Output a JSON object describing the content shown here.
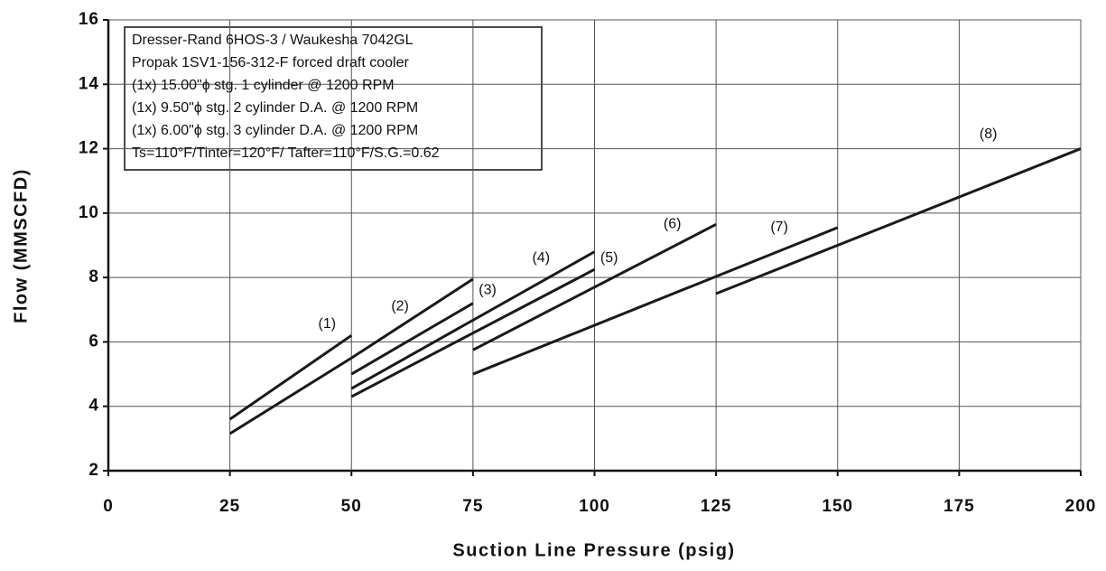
{
  "chart_data": {
    "type": "line",
    "xlabel": "Suction Line Pressure (psig)",
    "ylabel": "Flow (MMSCFD)",
    "xlim": [
      0,
      200
    ],
    "xticks": [
      0,
      25,
      50,
      75,
      100,
      125,
      150,
      175,
      200
    ],
    "ylim": [
      2,
      16
    ],
    "yticks": [
      2,
      4,
      6,
      8,
      10,
      12,
      14,
      16
    ],
    "grid": true,
    "color": "#1a1a1a",
    "series": [
      {
        "x": [
          25,
          50
        ],
        "values": [
          3.6,
          6.2
        ]
      },
      {
        "x": [
          25,
          50
        ],
        "values": [
          3.15,
          5.5
        ]
      },
      {
        "x": [
          50,
          75
        ],
        "values": [
          5.5,
          7.95
        ]
      },
      {
        "x": [
          50,
          75
        ],
        "values": [
          5.0,
          7.2
        ]
      },
      {
        "x": [
          50,
          100
        ],
        "values": [
          4.55,
          8.8
        ]
      },
      {
        "x": [
          50,
          100
        ],
        "values": [
          4.3,
          8.25
        ]
      },
      {
        "x": [
          75,
          125
        ],
        "values": [
          5.75,
          9.65
        ]
      },
      {
        "x": [
          75,
          150
        ],
        "values": [
          5.0,
          9.55
        ]
      },
      {
        "x": [
          125,
          200
        ],
        "values": [
          7.5,
          12.0
        ]
      }
    ],
    "annotations": [
      {
        "text": "(1)",
        "x": 45,
        "y": 6.55
      },
      {
        "text": "(2)",
        "x": 60,
        "y": 7.1
      },
      {
        "text": "(3)",
        "x": 78,
        "y": 7.6
      },
      {
        "text": "(4)",
        "x": 89,
        "y": 8.6
      },
      {
        "text": "(5)",
        "x": 103,
        "y": 8.6
      },
      {
        "text": "(6)",
        "x": 116,
        "y": 9.65
      },
      {
        "text": "(7)",
        "x": 138,
        "y": 9.55
      },
      {
        "text": "(8)",
        "x": 181,
        "y": 12.45
      }
    ],
    "info_box": [
      "Dresser-Rand 6HOS-3 / Waukesha 7042GL",
      "Propak 1SV1-156-312-F forced draft cooler",
      "(1x) 15.00\"ϕ stg. 1 cylinder @ 1200 RPM",
      "(1x) 9.50\"ϕ stg. 2 cylinder D.A. @ 1200 RPM",
      "(1x) 6.00\"ϕ stg. 3 cylinder D.A. @ 1200 RPM",
      "Ts=110°F/Tinter=120°F/ Tafter=110°F/S.G.=0.62"
    ]
  }
}
